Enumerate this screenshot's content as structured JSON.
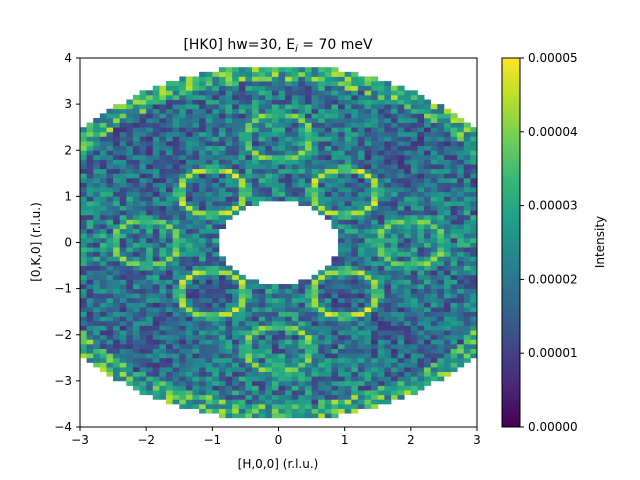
{
  "chart_data": {
    "type": "heatmap",
    "title": "[HK0] hw=30, E",
    "title_subscript": "i",
    "title_suffix": " = 70 meV",
    "xlabel": "[H,0,0] (r.l.u.)",
    "ylabel": "[0,K,0] (r.l.u.)",
    "colorbar_label": "Intensity",
    "xlim": [
      -3,
      3
    ],
    "ylim": [
      -4,
      4
    ],
    "clim": [
      0,
      5e-05
    ],
    "colormap": "viridis",
    "colormap_stops": [
      "#440154",
      "#482878",
      "#3e4989",
      "#31688e",
      "#26828e",
      "#1f9e89",
      "#35b779",
      "#6ece58",
      "#b5de2b",
      "#fde725"
    ],
    "x_ticks": [
      -3,
      -2,
      -1,
      0,
      1,
      2,
      3
    ],
    "x_tick_labels": [
      "−3",
      "−2",
      "−1",
      "0",
      "1",
      "2",
      "3"
    ],
    "y_ticks": [
      -4,
      -3,
      -2,
      -1,
      0,
      1,
      2,
      3,
      4
    ],
    "y_tick_labels": [
      "−4",
      "−3",
      "−2",
      "−1",
      "0",
      "1",
      "2",
      "3",
      "4"
    ],
    "colorbar_ticks": [
      0,
      1e-05,
      2e-05,
      3e-05,
      4e-05,
      5e-05
    ],
    "colorbar_tick_labels": [
      "0.00000",
      "0.00001",
      "0.00002",
      "0.00003",
      "0.00004",
      "0.00005"
    ],
    "coverage_q_range": [
      0.9,
      3.85
    ],
    "ring_features": [
      {
        "center": [
          1.0,
          1.1
        ],
        "radius": 0.5,
        "peak_intensity": 5e-05
      },
      {
        "center": [
          -1.0,
          1.1
        ],
        "radius": 0.5,
        "peak_intensity": 5e-05
      },
      {
        "center": [
          1.0,
          -1.1
        ],
        "radius": 0.5,
        "peak_intensity": 5e-05
      },
      {
        "center": [
          -1.0,
          -1.1
        ],
        "radius": 0.5,
        "peak_intensity": 5e-05
      },
      {
        "center": [
          0.0,
          2.3
        ],
        "radius": 0.5,
        "peak_intensity": 4.5e-05
      },
      {
        "center": [
          0.0,
          -2.3
        ],
        "radius": 0.5,
        "peak_intensity": 4.5e-05
      },
      {
        "center": [
          2.0,
          0.0
        ],
        "radius": 0.5,
        "peak_intensity": 4.5e-05
      },
      {
        "center": [
          -2.0,
          0.0
        ],
        "radius": 0.5,
        "peak_intensity": 4.5e-05
      }
    ],
    "background_intensity": 2.5e-05,
    "grid": false
  }
}
